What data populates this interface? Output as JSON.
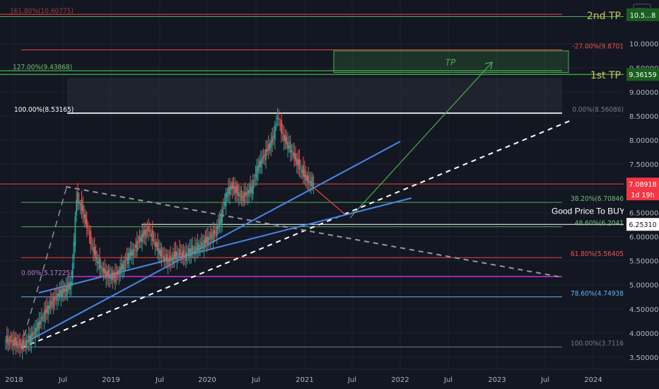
{
  "chart_data": {
    "type": "candlestick",
    "currency": "TRY",
    "y_ticks": [
      "3.50000",
      "4.00000",
      "4.50000",
      "5.00000",
      "5.50000",
      "6.00000",
      "6.50000",
      "7.00000",
      "7.50000",
      "8.00000",
      "8.50000",
      "9.00000",
      "9.50000",
      "10.00000"
    ],
    "x_ticks": [
      "2018",
      "Jul",
      "2019",
      "Jul",
      "2020",
      "Jul",
      "2021",
      "Jul",
      "2022",
      "Jul",
      "2023",
      "Jul",
      "2024"
    ],
    "price_badges": [
      {
        "label": "1st TP",
        "price_text": "9.36159",
        "price": 9.36159
      },
      {
        "label": "2nd TP",
        "price_text": "10.5...8",
        "price": 10.6
      }
    ],
    "current_price": {
      "value": "7.08918",
      "countdown": "1d 19h"
    },
    "buy_price": {
      "value": "6.25310",
      "label": "Good Price To BUY"
    },
    "tp_box": {
      "label": "TP",
      "low": 9.4,
      "high": 9.85
    },
    "fib_levels_upper": [
      {
        "text": "161.80%(10.60775)",
        "price": 10.607
      },
      {
        "text": "127.00%(9.43868)",
        "price": 9.43868
      },
      {
        "text": "100.00%(8.53165)",
        "price": 8.53165
      },
      {
        "text": "-27.00%(9.8701",
        "price": 9.8701
      }
    ],
    "fib_levels_lower": [
      {
        "text": "0.00%(8.56086)",
        "price": 8.56086
      },
      {
        "text": "38.20%(6.70846",
        "price": 6.70846
      },
      {
        "text": "48.60%(6.2041",
        "price": 6.2041
      },
      {
        "text": "61.80%(5.56405",
        "price": 5.56405
      },
      {
        "text": "0.00%(5.17225)",
        "price": 5.17225
      },
      {
        "text": "78.60%(4.74938",
        "price": 4.74938
      },
      {
        "text": "100.00%(3.7116",
        "price": 3.7116
      }
    ],
    "colors": {
      "background": "#131722",
      "up": "#26a69a",
      "down": "#ef5350",
      "trend_blue": "#4a86e8",
      "fib_green": "#4caf50",
      "fib_red": "#f44336",
      "fib_purple": "#9c27b0",
      "fib_white": "#ffffff",
      "tp_badge": "#1b5e20",
      "price_badge": "#f23645"
    },
    "series_close": [
      3.85,
      3.8,
      3.75,
      3.78,
      3.9,
      4.05,
      4.25,
      4.45,
      4.6,
      4.75,
      4.85,
      4.9,
      5.05,
      6.8,
      6.6,
      6.2,
      5.8,
      5.5,
      5.3,
      5.2,
      5.15,
      5.25,
      5.4,
      5.6,
      5.7,
      5.9,
      6.05,
      6.15,
      5.9,
      5.7,
      5.55,
      5.5,
      5.6,
      5.65,
      5.6,
      5.7,
      5.75,
      5.8,
      5.9,
      6.0,
      6.1,
      6.4,
      6.85,
      7.05,
      6.95,
      6.8,
      6.9,
      7.0,
      7.4,
      7.6,
      7.8,
      8.0,
      8.5,
      8.1,
      7.9,
      7.7,
      7.5,
      7.3,
      7.15,
      7.09
    ]
  }
}
